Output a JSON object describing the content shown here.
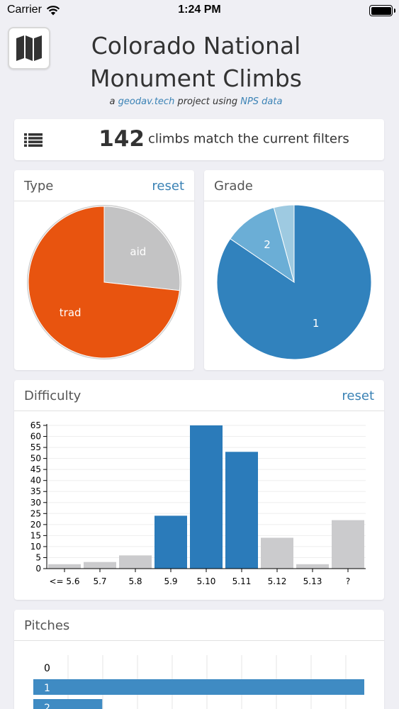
{
  "status_bar": {
    "carrier": "Carrier",
    "time": "1:24 PM"
  },
  "header": {
    "title_line1": "Colorado National",
    "title_line2": "Monument Climbs",
    "subtitle_prefix": "a ",
    "subtitle_link1": "geodav.tech",
    "subtitle_mid": " project using ",
    "subtitle_link2": "NPS data",
    "app_icon": "map-icon"
  },
  "summary": {
    "count": "142",
    "label": "climbs match the current filters",
    "icon": "list-icon"
  },
  "type_panel": {
    "title": "Type",
    "reset": "reset"
  },
  "grade_panel": {
    "title": "Grade"
  },
  "difficulty_panel": {
    "title": "Difficulty",
    "reset": "reset"
  },
  "pitches_panel": {
    "title": "Pitches"
  },
  "colors": {
    "trad": "#e8540f",
    "aid": "#c3c3c4",
    "selected": "#2b7bba",
    "unselected": "#cbcbcd",
    "grade1": "#3182bd",
    "grade2": "#6baed6",
    "grade3": "#9ecae1",
    "link": "#3a82b5"
  },
  "chart_data": [
    {
      "type": "pie",
      "labels": [
        "aid",
        "trad"
      ],
      "values": [
        38,
        104
      ]
    },
    {
      "type": "pie",
      "labels": [
        "1",
        "2",
        ""
      ],
      "values": [
        120,
        16,
        6
      ]
    },
    {
      "type": "bar",
      "categories": [
        "<= 5.6",
        "5.7",
        "5.8",
        "5.9",
        "5.10",
        "5.11",
        "5.12",
        "5.13",
        "?"
      ],
      "values": [
        2,
        3,
        6,
        24,
        65,
        53,
        14,
        2,
        22
      ],
      "selected": [
        false,
        false,
        false,
        true,
        true,
        true,
        false,
        false,
        false
      ],
      "yticks": [
        0,
        5,
        10,
        15,
        20,
        25,
        30,
        35,
        40,
        45,
        50,
        55,
        60,
        65
      ],
      "ylim": [
        0,
        65
      ]
    },
    {
      "type": "bar",
      "orientation": "horizontal",
      "categories": [
        "0",
        "1",
        "2"
      ],
      "values": [
        0,
        96,
        20
      ]
    }
  ]
}
